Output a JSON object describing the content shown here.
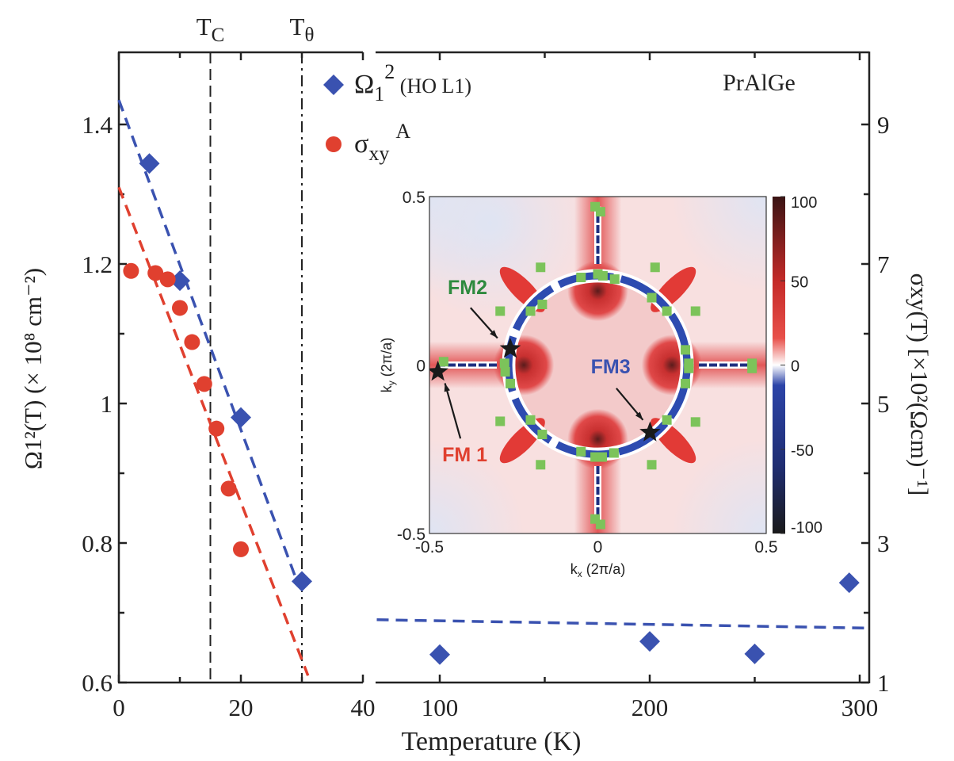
{
  "chart_data": {
    "type": "scatter",
    "xlabel": "Temperature (K)",
    "ylabel_left": "Ω1²(T) (× 10⁸ cm⁻²)",
    "ylabel_right": "σxy(T) [×10²(Ωcm)⁻¹]",
    "annotation": "PrAlGe",
    "xlim_left_panel": [
      0,
      40
    ],
    "xlim_right_panel": [
      70,
      305
    ],
    "ylim_left": [
      0.6,
      1.5
    ],
    "ylim_right": [
      1,
      10
    ],
    "x_ticks_left_panel": [
      "0",
      "20",
      "40"
    ],
    "x_ticks_right_panel": [
      "100",
      "200",
      "300"
    ],
    "y_ticks_left": [
      "0.6",
      "0.8",
      "1",
      "1.2",
      "1.4"
    ],
    "y_ticks_right": [
      "1",
      "3",
      "5",
      "7",
      "9"
    ],
    "vlines": [
      {
        "label_main": "T",
        "label_sub": "C",
        "x": 15,
        "style": "dashed"
      },
      {
        "label_main": "T",
        "label_sub": "θ",
        "x": 30,
        "style": "dash-dot"
      }
    ],
    "legend": {
      "placement": "top-center",
      "entries": [
        {
          "main": "Ω",
          "sub": "1",
          "sup": "2",
          "suffix": " (HO L1)",
          "marker": "diamond",
          "color": "#3a52b0"
        },
        {
          "main": "σ",
          "sub": "xy",
          "sup": "A",
          "suffix": "",
          "marker": "circle",
          "color": "#e0402f"
        }
      ]
    },
    "series": [
      {
        "name": "Ω1² (HO L1)",
        "axis": "left",
        "marker": "diamond",
        "color": "#3a52b0",
        "x": [
          5,
          10,
          20,
          30,
          100,
          200,
          250,
          295
        ],
        "y": [
          1.344,
          1.176,
          0.98,
          0.745,
          0.64,
          0.659,
          0.641,
          0.743
        ]
      },
      {
        "name": "σxy A",
        "axis": "right",
        "marker": "circle",
        "color": "#e0402f",
        "x": [
          2,
          6,
          8,
          10,
          12,
          14,
          16,
          18,
          20
        ],
        "y": [
          6.9,
          6.87,
          6.78,
          6.37,
          5.88,
          5.28,
          4.64,
          3.78,
          2.91
        ]
      }
    ],
    "fits": [
      {
        "axis": "left",
        "color": "#3a52b0",
        "x": [
          0,
          29.2
        ],
        "y": [
          1.435,
          0.745
        ]
      },
      {
        "axis": "right",
        "color": "#e0402f",
        "x": [
          0,
          31
        ],
        "y": [
          8.1,
          1.1
        ]
      },
      {
        "axis": "left",
        "color": "#3a52b0",
        "x": [
          70,
          305
        ],
        "y": [
          0.69,
          0.678
        ]
      }
    ],
    "inset": {
      "type": "heatmap",
      "xlabel_main": "k",
      "xlabel_sub": "x",
      "xlabel_unit": " (2π/a)",
      "ylabel_main": "k",
      "ylabel_sub": "y",
      "ylabel_unit": " (2π/a)",
      "xlim": [
        -0.5,
        0.5
      ],
      "ylim": [
        -0.5,
        0.5
      ],
      "x_ticks": [
        "-0.5",
        "0",
        "0.5"
      ],
      "y_ticks": [
        "0.5",
        "0",
        "-0.5"
      ],
      "colorbar": {
        "ticks": [
          "100",
          "50",
          "0",
          "-50",
          "-100"
        ],
        "range": [
          -100,
          100
        ],
        "colors": [
          "#3a1414",
          "#d9302c",
          "#ffffff",
          "#2c44a8",
          "#1a1a1a"
        ]
      },
      "marker_color": "#7cc35a",
      "green_markers": [
        [
          -0.008,
          0.47
        ],
        [
          0.008,
          0.455
        ],
        [
          -0.17,
          0.29
        ],
        [
          0.17,
          0.29
        ],
        [
          -0.05,
          0.26
        ],
        [
          0,
          0.27
        ],
        [
          0.015,
          0.265
        ],
        [
          0.05,
          0.255
        ],
        [
          -0.165,
          0.18
        ],
        [
          0.16,
          0.2
        ],
        [
          -0.29,
          0.16
        ],
        [
          -0.2,
          0.16
        ],
        [
          0.205,
          0.16
        ],
        [
          0.29,
          0.16
        ],
        [
          0.26,
          0.045
        ],
        [
          -0.277,
          0.005
        ],
        [
          -0.275,
          -0.02
        ],
        [
          0.27,
          0.005
        ],
        [
          0.27,
          -0.01
        ],
        [
          -0.26,
          -0.055
        ],
        [
          0.26,
          -0.055
        ],
        [
          -0.458,
          0.01
        ],
        [
          0.458,
          0.005
        ],
        [
          0.458,
          -0.01
        ],
        [
          -0.29,
          -0.167
        ],
        [
          -0.2,
          -0.163
        ],
        [
          0.205,
          -0.163
        ],
        [
          0.29,
          -0.169
        ],
        [
          -0.165,
          -0.206
        ],
        [
          0.16,
          -0.296
        ],
        [
          -0.17,
          -0.296
        ],
        [
          -0.05,
          -0.257
        ],
        [
          -0.008,
          -0.273
        ],
        [
          0.013,
          -0.273
        ],
        [
          0.048,
          -0.261
        ],
        [
          -0.008,
          -0.457
        ],
        [
          0.008,
          -0.473
        ]
      ],
      "points": [
        {
          "label": "FM 1",
          "color": "#e0402f",
          "k": [
            -0.475,
            -0.02
          ],
          "label_at": [
            -0.395,
            -0.265
          ],
          "arrow_from": [
            -0.408,
            -0.218
          ],
          "arrow_to": [
            -0.454,
            -0.054
          ]
        },
        {
          "label": "FM2",
          "color": "#2e8a3e",
          "k": [
            -0.26,
            0.048
          ],
          "label_at": [
            -0.387,
            0.232
          ],
          "arrow_from": [
            -0.378,
            0.17
          ],
          "arrow_to": [
            -0.298,
            0.08
          ]
        },
        {
          "label": "FM3",
          "color": "#3a52b0",
          "k": [
            0.155,
            -0.2
          ],
          "label_at": [
            0.038,
            -0.003
          ],
          "arrow_from": [
            0.055,
            -0.069
          ],
          "arrow_to": [
            0.134,
            -0.163
          ]
        }
      ]
    }
  }
}
